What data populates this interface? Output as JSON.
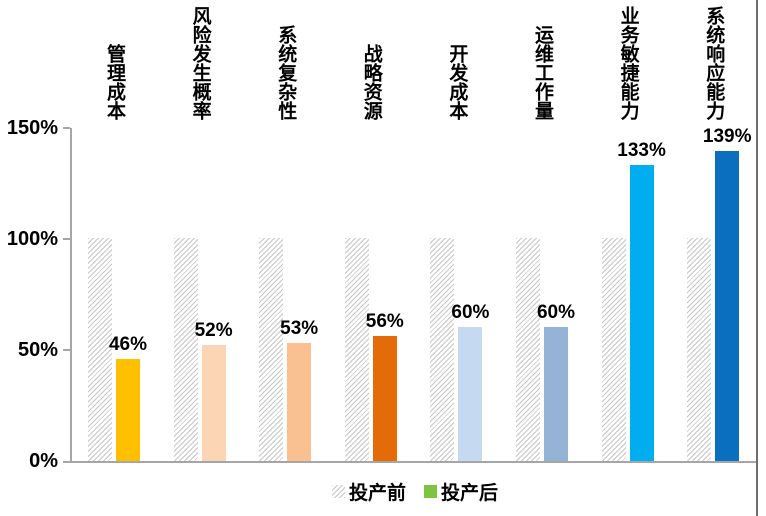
{
  "chart_data": {
    "type": "bar",
    "title": "",
    "categories": [
      "管理成本",
      "风险发生概率",
      "系统复杂性",
      "战略资源",
      "开发成本",
      "运维工作量",
      "业务敏捷能力",
      "系统响应能力"
    ],
    "series": [
      {
        "name": "投产前",
        "values": [
          100,
          100,
          100,
          100,
          100,
          100,
          100,
          100
        ],
        "pattern": "diagonal-hatch",
        "color": "#c6c6c6"
      },
      {
        "name": "投产后",
        "values": [
          46,
          52,
          53,
          56,
          60,
          60,
          133,
          139
        ],
        "colors": [
          "#FFC000",
          "#FCD5B4",
          "#FAC090",
          "#E36C09",
          "#C5D9F1",
          "#95B3D7",
          "#00AEEF",
          "#0B6FBF"
        ],
        "legend_color": "#7DC540"
      }
    ],
    "data_labels": [
      "46%",
      "52%",
      "53%",
      "56%",
      "60%",
      "60%",
      "133%",
      "139%"
    ],
    "y_ticks": [
      "150%",
      "100%",
      "50%",
      "0%"
    ],
    "ylim": [
      0,
      150
    ],
    "grid": false,
    "legend_position": "bottom",
    "axis_color": "#a6a6a6"
  }
}
